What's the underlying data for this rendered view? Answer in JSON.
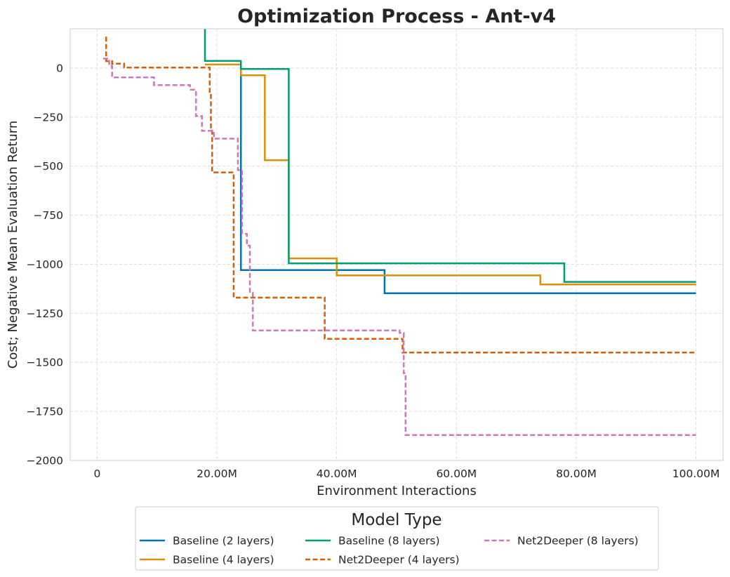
{
  "chart_data": {
    "type": "line",
    "title": "Optimization Process - Ant-v4",
    "xlabel": "Environment Interactions",
    "ylabel": "Cost; Negative Mean Evaluation Return",
    "xlim": [
      -4500000,
      104500000
    ],
    "ylim": [
      -2000,
      200
    ],
    "x_ticks": [
      0,
      20000000,
      40000000,
      60000000,
      80000000,
      100000000
    ],
    "x_tick_labels": [
      "0",
      "20.00M",
      "40.00M",
      "60.00M",
      "80.00M",
      "100.00M"
    ],
    "y_ticks": [
      0,
      -250,
      -500,
      -750,
      -1000,
      -1250,
      -1500,
      -1750,
      -2000
    ],
    "y_tick_labels": [
      "0",
      "−250",
      "−500",
      "−750",
      "−1000",
      "−1250",
      "−1500",
      "−1750",
      "−2000"
    ],
    "grid": true,
    "step": "post",
    "legend": {
      "title": "Model Type",
      "placement": "bottom-center",
      "columns": 3
    },
    "series": [
      {
        "name": "Baseline (2 layers)",
        "color": "#0173b2",
        "dashed": false,
        "x": [
          24000000,
          24000000,
          48000000,
          100000000
        ],
        "y": [
          20,
          -1030,
          -1148,
          -1148
        ]
      },
      {
        "name": "Baseline (4 layers)",
        "color": "#de8f05",
        "dashed": false,
        "x": [
          18000000,
          24000000,
          28000000,
          32000000,
          40000000,
          74000000,
          100000000
        ],
        "y": [
          18,
          -37,
          -470,
          -970,
          -1057,
          -1103,
          -1103
        ]
      },
      {
        "name": "Baseline (8 layers)",
        "color": "#029e73",
        "dashed": false,
        "x": [
          18000000,
          18000000,
          24000000,
          32000000,
          78000000,
          100000000
        ],
        "y": [
          200,
          36,
          -5,
          -995,
          -1090,
          -1090
        ]
      },
      {
        "name": "Net2Deeper (4 layers)",
        "color": "#d55e00",
        "dashed": true,
        "x": [
          1500000,
          1500000,
          2500000,
          4500000,
          18800000,
          19000000,
          19200000,
          22800000,
          38000000,
          51000000,
          100000000
        ],
        "y": [
          160,
          35,
          22,
          2,
          -130,
          -310,
          -532,
          -1170,
          -1380,
          -1450,
          -1450
        ]
      },
      {
        "name": "Net2Deeper (8 layers)",
        "color": "#cc78bc",
        "dashed": true,
        "x": [
          1000000,
          2000000,
          2500000,
          9500000,
          15500000,
          16500000,
          17500000,
          19500000,
          23500000,
          24200000,
          25000000,
          25500000,
          26000000,
          50500000,
          51200000,
          51500000,
          100000000
        ],
        "y": [
          48,
          12,
          -48,
          -87,
          -110,
          -245,
          -320,
          -360,
          -520,
          -845,
          -905,
          -1145,
          -1337,
          -1350,
          -1555,
          -1870,
          -1870
        ]
      }
    ]
  }
}
